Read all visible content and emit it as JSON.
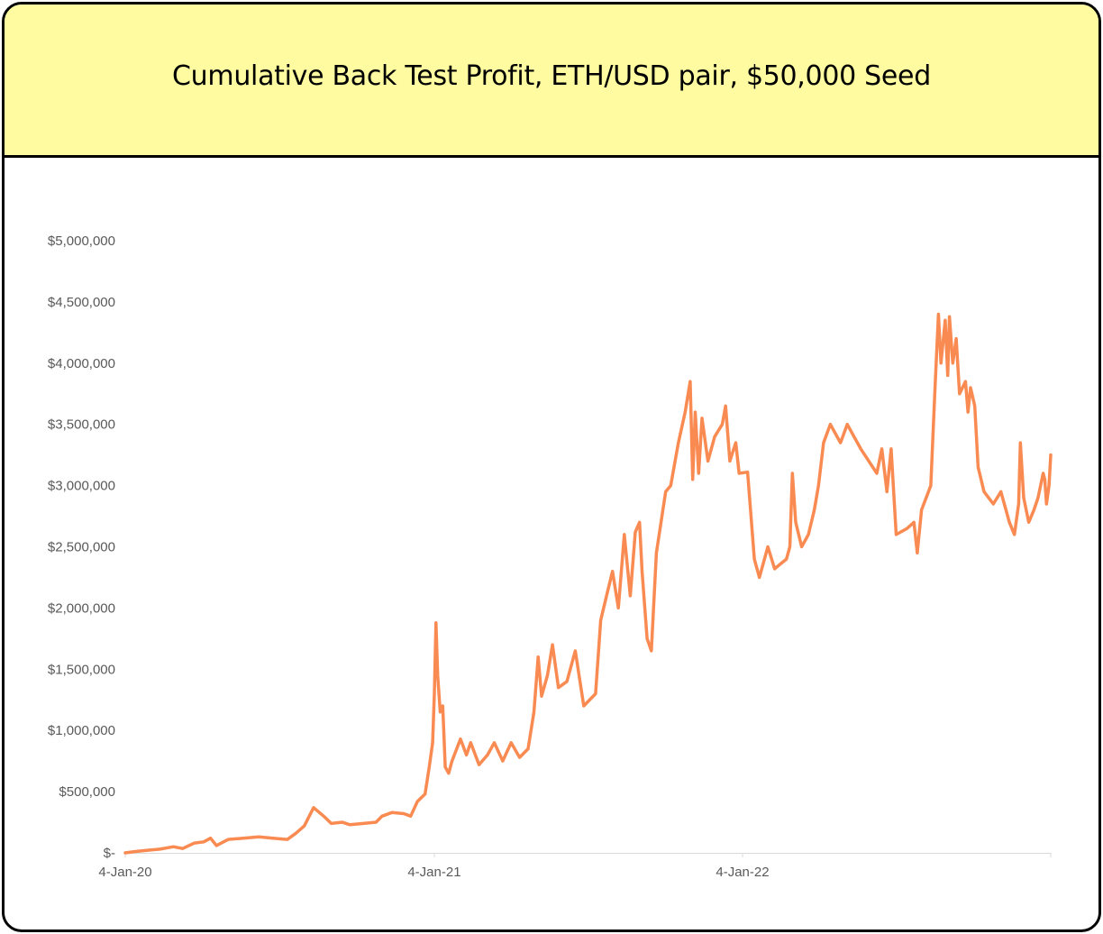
{
  "title": "Cumulative Back Test Profit, ETH/USD pair, $50,000 Seed",
  "colors": {
    "header_bg": "#fefba0",
    "line": "#f98b52",
    "axis": "#d9d9d9",
    "text": "#595959"
  },
  "chart_data": {
    "type": "line",
    "title": "Cumulative Back Test Profit, ETH/USD pair, $50,000 Seed",
    "xlabel": "",
    "ylabel": "",
    "ylim": [
      0,
      5000000
    ],
    "xlim": [
      "2020-01-04",
      "2023-01-04"
    ],
    "grid": false,
    "legend": "none",
    "y_ticks": [
      {
        "value": 0,
        "label": "$-"
      },
      {
        "value": 500000,
        "label": "$500,000"
      },
      {
        "value": 1000000,
        "label": "$1,000,000"
      },
      {
        "value": 1500000,
        "label": "$1,500,000"
      },
      {
        "value": 2000000,
        "label": "$2,000,000"
      },
      {
        "value": 2500000,
        "label": "$2,500,000"
      },
      {
        "value": 3000000,
        "label": "$3,000,000"
      },
      {
        "value": 3500000,
        "label": "$3,500,000"
      },
      {
        "value": 4000000,
        "label": "$4,000,000"
      },
      {
        "value": 4500000,
        "label": "$4,500,000"
      },
      {
        "value": 5000000,
        "label": "$5,000,000"
      }
    ],
    "x_ticks": [
      {
        "date": "2020-01-04",
        "label": "4-Jan-20"
      },
      {
        "date": "2021-01-04",
        "label": "4-Jan-21"
      },
      {
        "date": "2022-01-04",
        "label": "4-Jan-22"
      },
      {
        "date": "2023-01-04",
        "label": ""
      }
    ],
    "series": [
      {
        "color": "#f98b52",
        "points": [
          [
            "2020-01-04",
            0
          ],
          [
            "2020-01-15",
            10000
          ],
          [
            "2020-01-29",
            20000
          ],
          [
            "2020-02-14",
            30000
          ],
          [
            "2020-03-01",
            50000
          ],
          [
            "2020-03-12",
            35000
          ],
          [
            "2020-03-26",
            80000
          ],
          [
            "2020-04-06",
            90000
          ],
          [
            "2020-04-14",
            120000
          ],
          [
            "2020-04-21",
            60000
          ],
          [
            "2020-05-05",
            110000
          ],
          [
            "2020-05-23",
            120000
          ],
          [
            "2020-06-10",
            130000
          ],
          [
            "2020-06-27",
            120000
          ],
          [
            "2020-07-14",
            110000
          ],
          [
            "2020-07-24",
            160000
          ],
          [
            "2020-08-03",
            220000
          ],
          [
            "2020-08-14",
            370000
          ],
          [
            "2020-08-26",
            300000
          ],
          [
            "2020-09-04",
            240000
          ],
          [
            "2020-09-17",
            250000
          ],
          [
            "2020-09-26",
            230000
          ],
          [
            "2020-10-12",
            240000
          ],
          [
            "2020-10-27",
            250000
          ],
          [
            "2020-11-03",
            300000
          ],
          [
            "2020-11-15",
            330000
          ],
          [
            "2020-11-29",
            320000
          ],
          [
            "2020-12-07",
            300000
          ],
          [
            "2020-12-15",
            420000
          ],
          [
            "2020-12-24",
            480000
          ],
          [
            "2020-12-29",
            700000
          ],
          [
            "2021-01-02",
            900000
          ],
          [
            "2021-01-04",
            1300000
          ],
          [
            "2021-01-06",
            1880000
          ],
          [
            "2021-01-08",
            1450000
          ],
          [
            "2021-01-11",
            1150000
          ],
          [
            "2021-01-14",
            1200000
          ],
          [
            "2021-01-17",
            700000
          ],
          [
            "2021-01-21",
            650000
          ],
          [
            "2021-01-25",
            750000
          ],
          [
            "2021-02-04",
            930000
          ],
          [
            "2021-02-11",
            800000
          ],
          [
            "2021-02-16",
            900000
          ],
          [
            "2021-02-26",
            720000
          ],
          [
            "2021-03-08",
            800000
          ],
          [
            "2021-03-16",
            900000
          ],
          [
            "2021-03-26",
            750000
          ],
          [
            "2021-04-05",
            900000
          ],
          [
            "2021-04-15",
            780000
          ],
          [
            "2021-04-25",
            850000
          ],
          [
            "2021-05-02",
            1150000
          ],
          [
            "2021-05-07",
            1600000
          ],
          [
            "2021-05-11",
            1280000
          ],
          [
            "2021-05-18",
            1450000
          ],
          [
            "2021-05-24",
            1700000
          ],
          [
            "2021-05-31",
            1350000
          ],
          [
            "2021-06-10",
            1400000
          ],
          [
            "2021-06-20",
            1650000
          ],
          [
            "2021-06-30",
            1200000
          ],
          [
            "2021-07-14",
            1300000
          ],
          [
            "2021-07-20",
            1900000
          ],
          [
            "2021-07-27",
            2100000
          ],
          [
            "2021-08-03",
            2300000
          ],
          [
            "2021-08-10",
            2000000
          ],
          [
            "2021-08-17",
            2600000
          ],
          [
            "2021-08-24",
            2100000
          ],
          [
            "2021-08-30",
            2620000
          ],
          [
            "2021-09-04",
            2700000
          ],
          [
            "2021-09-07",
            2300000
          ],
          [
            "2021-09-13",
            1750000
          ],
          [
            "2021-09-18",
            1650000
          ],
          [
            "2021-09-24",
            2450000
          ],
          [
            "2021-10-05",
            2950000
          ],
          [
            "2021-10-11",
            3000000
          ],
          [
            "2021-10-20",
            3350000
          ],
          [
            "2021-10-28",
            3600000
          ],
          [
            "2021-11-03",
            3850000
          ],
          [
            "2021-11-06",
            3050000
          ],
          [
            "2021-11-09",
            3600000
          ],
          [
            "2021-11-13",
            3100000
          ],
          [
            "2021-11-17",
            3550000
          ],
          [
            "2021-11-24",
            3200000
          ],
          [
            "2021-12-02",
            3400000
          ],
          [
            "2021-12-11",
            3500000
          ],
          [
            "2021-12-15",
            3650000
          ],
          [
            "2021-12-20",
            3200000
          ],
          [
            "2021-12-27",
            3350000
          ],
          [
            "2021-12-31",
            3100000
          ],
          [
            "2022-01-10",
            3110000
          ],
          [
            "2022-01-18",
            2400000
          ],
          [
            "2022-01-24",
            2250000
          ],
          [
            "2022-02-03",
            2500000
          ],
          [
            "2022-02-11",
            2320000
          ],
          [
            "2022-02-25",
            2400000
          ],
          [
            "2022-03-01",
            2500000
          ],
          [
            "2022-03-04",
            3100000
          ],
          [
            "2022-03-08",
            2700000
          ],
          [
            "2022-03-15",
            2500000
          ],
          [
            "2022-03-23",
            2600000
          ],
          [
            "2022-03-30",
            2800000
          ],
          [
            "2022-04-04",
            3000000
          ],
          [
            "2022-04-10",
            3350000
          ],
          [
            "2022-04-18",
            3500000
          ],
          [
            "2022-04-30",
            3350000
          ],
          [
            "2022-05-08",
            3500000
          ],
          [
            "2022-05-24",
            3300000
          ],
          [
            "2022-06-12",
            3100000
          ],
          [
            "2022-06-18",
            3300000
          ],
          [
            "2022-06-24",
            2950000
          ],
          [
            "2022-06-29",
            3300000
          ],
          [
            "2022-07-05",
            2600000
          ],
          [
            "2022-07-18",
            2650000
          ],
          [
            "2022-07-26",
            2700000
          ],
          [
            "2022-07-30",
            2450000
          ],
          [
            "2022-08-04",
            2800000
          ],
          [
            "2022-08-15",
            3000000
          ],
          [
            "2022-08-20",
            3800000
          ],
          [
            "2022-08-24",
            4400000
          ],
          [
            "2022-08-27",
            4000000
          ],
          [
            "2022-09-01",
            4350000
          ],
          [
            "2022-09-04",
            3900000
          ],
          [
            "2022-09-06",
            4380000
          ],
          [
            "2022-09-10",
            4000000
          ],
          [
            "2022-09-14",
            4200000
          ],
          [
            "2022-09-18",
            3750000
          ],
          [
            "2022-09-25",
            3850000
          ],
          [
            "2022-09-28",
            3600000
          ],
          [
            "2022-10-01",
            3800000
          ],
          [
            "2022-10-06",
            3650000
          ],
          [
            "2022-10-10",
            3150000
          ],
          [
            "2022-10-17",
            2950000
          ],
          [
            "2022-10-28",
            2850000
          ],
          [
            "2022-11-06",
            2950000
          ],
          [
            "2022-11-16",
            2700000
          ],
          [
            "2022-11-22",
            2600000
          ],
          [
            "2022-11-27",
            2850000
          ],
          [
            "2022-11-29",
            3350000
          ],
          [
            "2022-12-03",
            2900000
          ],
          [
            "2022-12-09",
            2700000
          ],
          [
            "2022-12-15",
            2800000
          ],
          [
            "2022-12-20",
            2900000
          ],
          [
            "2022-12-26",
            3100000
          ],
          [
            "2022-12-28",
            3050000
          ],
          [
            "2022-12-30",
            2850000
          ],
          [
            "2023-01-02",
            3000000
          ],
          [
            "2023-01-04",
            3250000
          ]
        ]
      }
    ]
  }
}
